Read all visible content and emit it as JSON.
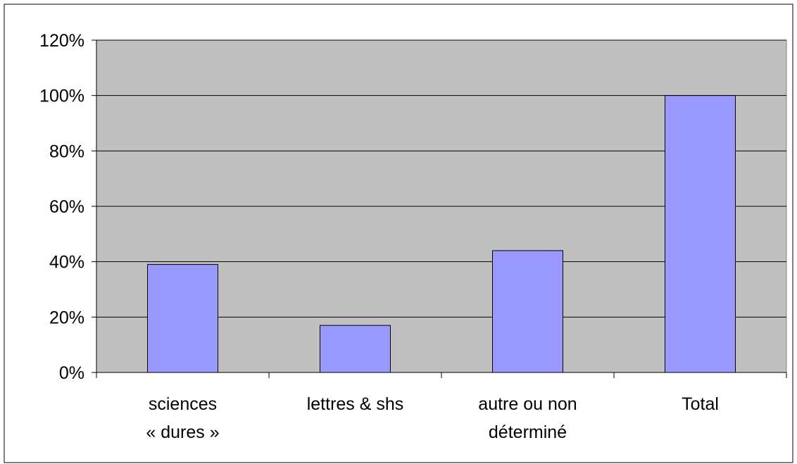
{
  "colors": {
    "plot_background": "#c0c0c0",
    "bar_fill": "#9999ff",
    "bar_stroke": "#000000",
    "gridline": "#000000",
    "frame": "#000000"
  },
  "chart_data": {
    "type": "bar",
    "title": "",
    "xlabel": "",
    "ylabel": "",
    "categories": [
      [
        "sciences",
        "« dures »"
      ],
      [
        "lettres & shs"
      ],
      [
        "autre ou non",
        "déterminé"
      ],
      [
        "Total"
      ]
    ],
    "values": [
      39,
      17,
      44,
      100
    ],
    "ylim": [
      0,
      120
    ],
    "yticks": [
      0,
      20,
      40,
      60,
      80,
      100,
      120
    ],
    "ytick_labels": [
      "0%",
      "20%",
      "40%",
      "60%",
      "80%",
      "100%",
      "120%"
    ],
    "grid": true,
    "legend": "none"
  }
}
